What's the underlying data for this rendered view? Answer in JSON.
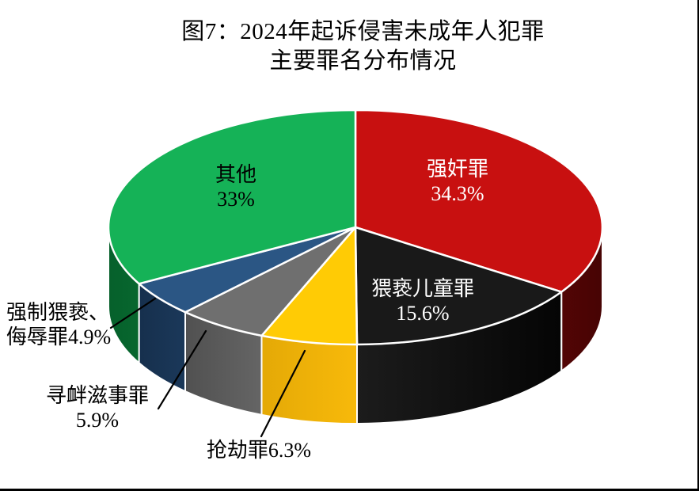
{
  "figure": {
    "title_line1": "图7：2024年起诉侵害未成年人犯罪",
    "title_line2": "主要罪名分布情况",
    "border_right_color": "#000000",
    "border_bottom_color": "#000000",
    "background": "#FFFFFF"
  },
  "chart_data": {
    "type": "pie",
    "style": "3d-cylinder",
    "start": "top",
    "direction": "clockwise",
    "total": 100,
    "separator_color": "#FFFFFF",
    "leader_line_color": "#000000",
    "slices": [
      {
        "name": "强奸罪",
        "value": 34.3,
        "percent_label": "34.3%",
        "color": "#C81010",
        "side": "#8A0909",
        "side_dark": "#470404",
        "text_color": "#FFFFFF",
        "label_placement": "inside",
        "label_lines": [
          "强奸罪",
          "34.3%"
        ]
      },
      {
        "name": "猥亵儿童罪",
        "value": 15.6,
        "percent_label": "15.6%",
        "color": "#191919",
        "side": "#1C1C1C",
        "side_dark": "#000000",
        "text_color": "#FFFFFF",
        "label_placement": "inside",
        "label_lines": [
          "猥亵儿童罪",
          "15.6%"
        ]
      },
      {
        "name": "抢劫罪",
        "value": 6.3,
        "percent_label": "6.3%",
        "color": "#FFCB05",
        "side": "#F7B90A",
        "side_dark": "#C68F00",
        "text_color": "#000000",
        "label_placement": "outside-bottom",
        "label_lines": [
          "抢劫罪6.3%"
        ]
      },
      {
        "name": "寻衅滋事罪",
        "value": 5.9,
        "percent_label": "5.9%",
        "color": "#6F6F6F",
        "side": "#7E7E7E",
        "side_dark": "#3C3C3C",
        "text_color": "#000000",
        "label_placement": "outside-left",
        "label_lines": [
          "寻衅滋事罪",
          "5.9%"
        ]
      },
      {
        "name": "强制猥亵、侮辱罪",
        "value": 4.9,
        "percent_label": "4.9%",
        "color": "#2B5684",
        "side": "#2C5887",
        "side_dark": "#132A45",
        "text_color": "#000000",
        "label_placement": "outside-left",
        "label_lines": [
          "强制猥亵、",
          "侮辱罪4.9%"
        ]
      },
      {
        "name": "其他",
        "value": 33,
        "percent_label": "33%",
        "color": "#15B257",
        "side": "#0F9A48",
        "side_dark": "#06602B",
        "text_color": "#000000",
        "label_placement": "inside",
        "label_lines": [
          "其他",
          "33%"
        ]
      }
    ]
  }
}
